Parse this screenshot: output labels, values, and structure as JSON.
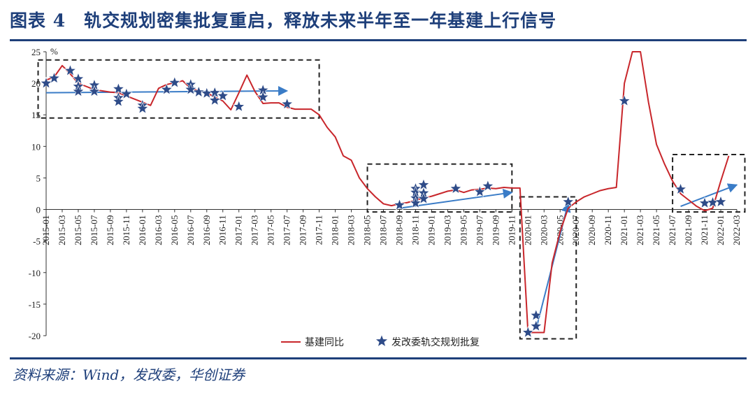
{
  "header": {
    "title": "图表 4　轨交规划密集批复重启，释放未来半年至一年基建上行信号"
  },
  "footer": {
    "source": "资料来源：Wind，发改委，华创证券"
  },
  "chart_data": {
    "type": "line",
    "unit_label": "%",
    "ylim": [
      -20,
      25
    ],
    "yticks": [
      25,
      20,
      15,
      10,
      5,
      0,
      -5,
      -10,
      -15,
      -20
    ],
    "xticks": [
      "2015-01",
      "2015-03",
      "2015-05",
      "2015-07",
      "2015-09",
      "2015-11",
      "2016-01",
      "2016-03",
      "2016-05",
      "2016-07",
      "2016-09",
      "2016-11",
      "2017-01",
      "2017-03",
      "2017-05",
      "2017-07",
      "2017-09",
      "2017-11",
      "2018-01",
      "2018-03",
      "2018-05",
      "2018-07",
      "2018-09",
      "2018-11",
      "2019-01",
      "2019-03",
      "2019-05",
      "2019-07",
      "2019-09",
      "2019-11",
      "2020-01",
      "2020-03",
      "2020-05",
      "2020-07",
      "2020-09",
      "2020-11",
      "2021-01",
      "2021-03",
      "2021-05",
      "2021-07",
      "2021-09",
      "2021-11",
      "2022-01",
      "2022-03"
    ],
    "legend": {
      "placement": "bottom-center"
    },
    "series": [
      {
        "name": "基建同比",
        "kind": "line",
        "color": "#c8262b",
        "points": [
          [
            "2015-01",
            20.5
          ],
          [
            "2015-02",
            21.0
          ],
          [
            "2015-03",
            22.8
          ],
          [
            "2015-04",
            21.5
          ],
          [
            "2015-05",
            20.0
          ],
          [
            "2015-06",
            19.5
          ],
          [
            "2015-07",
            19.0
          ],
          [
            "2015-08",
            18.8
          ],
          [
            "2015-09",
            18.6
          ],
          [
            "2015-10",
            18.5
          ],
          [
            "2015-11",
            18.0
          ],
          [
            "2015-12",
            17.5
          ],
          [
            "2016-01",
            17.0
          ],
          [
            "2016-02",
            16.5
          ],
          [
            "2016-03",
            19.2
          ],
          [
            "2016-04",
            19.8
          ],
          [
            "2016-05",
            20.1
          ],
          [
            "2016-06",
            20.4
          ],
          [
            "2016-07",
            19.2
          ],
          [
            "2016-08",
            18.8
          ],
          [
            "2016-09",
            18.5
          ],
          [
            "2016-10",
            17.8
          ],
          [
            "2016-11",
            17.2
          ],
          [
            "2016-12",
            15.8
          ],
          [
            "2017-01",
            18.5
          ],
          [
            "2017-02",
            21.3
          ],
          [
            "2017-03",
            18.7
          ],
          [
            "2017-04",
            16.8
          ],
          [
            "2017-05",
            16.9
          ],
          [
            "2017-06",
            16.9
          ],
          [
            "2017-07",
            16.2
          ],
          [
            "2017-08",
            15.9
          ],
          [
            "2017-09",
            15.9
          ],
          [
            "2017-10",
            15.9
          ],
          [
            "2017-11",
            15.0
          ],
          [
            "2017-12",
            13.0
          ],
          [
            "2018-01",
            11.5
          ],
          [
            "2018-02",
            8.5
          ],
          [
            "2018-03",
            7.8
          ],
          [
            "2018-04",
            5.0
          ],
          [
            "2018-05",
            3.3
          ],
          [
            "2018-06",
            2.0
          ],
          [
            "2018-07",
            0.9
          ],
          [
            "2018-08",
            0.6
          ],
          [
            "2018-09",
            0.9
          ],
          [
            "2018-10",
            1.1
          ],
          [
            "2018-11",
            1.5
          ],
          [
            "2018-12",
            1.8
          ],
          [
            "2019-01",
            2.1
          ],
          [
            "2019-02",
            2.5
          ],
          [
            "2019-03",
            2.9
          ],
          [
            "2019-04",
            3.1
          ],
          [
            "2019-05",
            2.7
          ],
          [
            "2019-06",
            3.1
          ],
          [
            "2019-07",
            3.2
          ],
          [
            "2019-08",
            3.4
          ],
          [
            "2019-09",
            3.3
          ],
          [
            "2019-10",
            3.5
          ],
          [
            "2019-11",
            3.4
          ],
          [
            "2019-12",
            3.4
          ],
          [
            "2020-01",
            -19.5
          ],
          [
            "2020-02",
            -19.5
          ],
          [
            "2020-03",
            -19.5
          ],
          [
            "2020-04",
            -8.5
          ],
          [
            "2020-05",
            -3.5
          ],
          [
            "2020-06",
            0.2
          ],
          [
            "2020-07",
            1.2
          ],
          [
            "2020-08",
            2.0
          ],
          [
            "2020-09",
            2.5
          ],
          [
            "2020-10",
            3.0
          ],
          [
            "2020-11",
            3.3
          ],
          [
            "2020-12",
            3.5
          ],
          [
            "2021-01",
            20.0
          ],
          [
            "2021-02",
            25.0
          ],
          [
            "2021-03",
            25.0
          ],
          [
            "2021-04",
            17.0
          ],
          [
            "2021-05",
            10.3
          ],
          [
            "2021-06",
            7.2
          ],
          [
            "2021-07",
            4.5
          ],
          [
            "2021-08",
            2.5
          ],
          [
            "2021-09",
            1.5
          ],
          [
            "2021-10",
            0.5
          ],
          [
            "2021-11",
            -0.2
          ],
          [
            "2021-12",
            0.2
          ],
          [
            "2022-01",
            4.5
          ],
          [
            "2022-02",
            8.5
          ]
        ]
      },
      {
        "name": "发改委轨交规划批复",
        "kind": "scatter",
        "color": "#2e4b88",
        "points": [
          [
            "2015-01",
            20.0
          ],
          [
            "2015-02",
            20.8
          ],
          [
            "2015-04",
            22.0
          ],
          [
            "2015-05",
            20.7
          ],
          [
            "2015-05",
            19.5
          ],
          [
            "2015-05",
            18.7
          ],
          [
            "2015-07",
            19.7
          ],
          [
            "2015-07",
            18.7
          ],
          [
            "2015-10",
            19.1
          ],
          [
            "2015-10",
            17.7
          ],
          [
            "2015-10",
            17.1
          ],
          [
            "2015-11",
            18.3
          ],
          [
            "2016-01",
            16.5
          ],
          [
            "2016-01",
            16.0
          ],
          [
            "2016-04",
            19.0
          ],
          [
            "2016-05",
            20.1
          ],
          [
            "2016-07",
            19.8
          ],
          [
            "2016-07",
            19.0
          ],
          [
            "2016-08",
            18.6
          ],
          [
            "2016-09",
            18.4
          ],
          [
            "2016-10",
            18.5
          ],
          [
            "2016-10",
            17.3
          ],
          [
            "2016-11",
            18.0
          ],
          [
            "2017-01",
            16.3
          ],
          [
            "2017-04",
            18.9
          ],
          [
            "2017-04",
            17.8
          ],
          [
            "2017-07",
            16.7
          ],
          [
            "2018-09",
            0.7
          ],
          [
            "2018-11",
            3.3
          ],
          [
            "2018-11",
            2.7
          ],
          [
            "2018-11",
            1.8
          ],
          [
            "2018-11",
            1.0
          ],
          [
            "2018-12",
            3.9
          ],
          [
            "2018-12",
            2.6
          ],
          [
            "2018-12",
            1.7
          ],
          [
            "2019-04",
            3.3
          ],
          [
            "2019-07",
            2.8
          ],
          [
            "2019-08",
            3.7
          ],
          [
            "2020-01",
            -19.5
          ],
          [
            "2020-02",
            -18.5
          ],
          [
            "2020-02",
            -16.8
          ],
          [
            "2020-06",
            1.2
          ],
          [
            "2021-01",
            17.2
          ],
          [
            "2021-08",
            3.2
          ],
          [
            "2021-11",
            1.0
          ],
          [
            "2021-12",
            1.1
          ],
          [
            "2022-01",
            1.2
          ]
        ]
      }
    ]
  }
}
